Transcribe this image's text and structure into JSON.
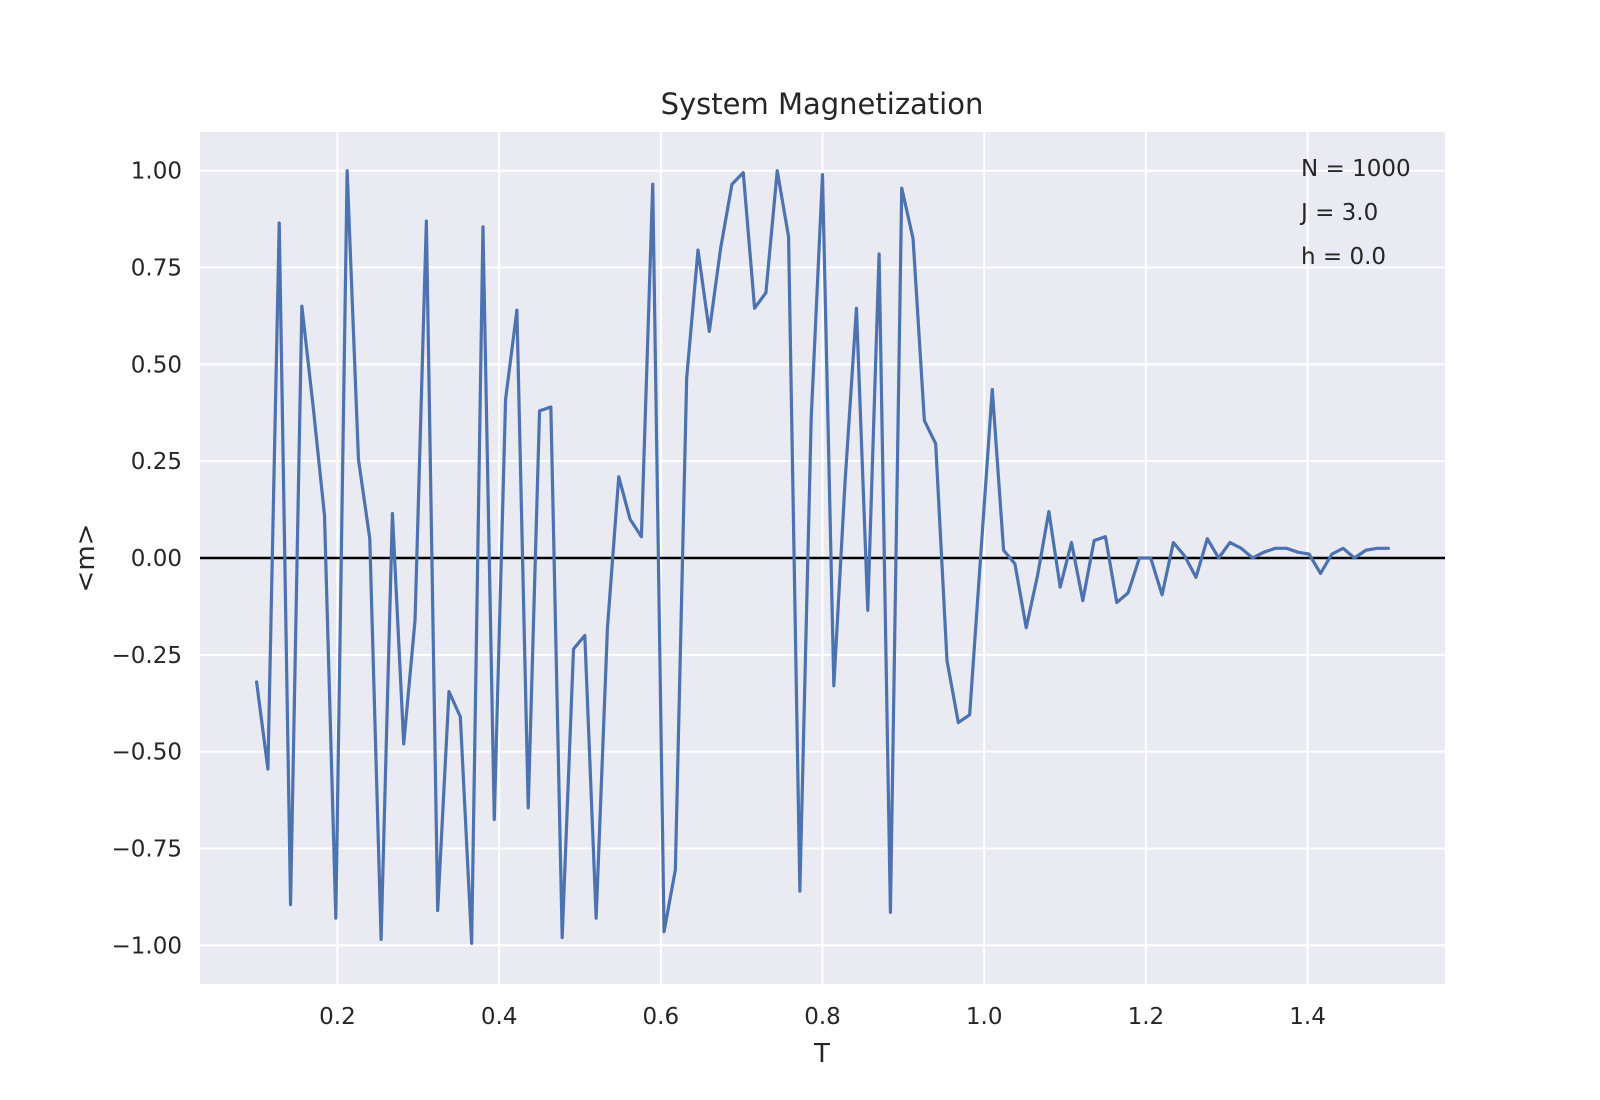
{
  "chart_data": {
    "type": "line",
    "title": "System Magnetization",
    "xlabel": "T",
    "ylabel": "<m>",
    "xlim": [
      0.03,
      1.57
    ],
    "ylim": [
      -1.1,
      1.1
    ],
    "xticks": [
      0.2,
      0.4,
      0.6,
      0.8,
      1.0,
      1.2,
      1.4
    ],
    "xtick_labels": [
      "0.2",
      "0.4",
      "0.6",
      "0.8",
      "1.0",
      "1.2",
      "1.4"
    ],
    "yticks": [
      1.0,
      0.75,
      0.5,
      0.25,
      0.0,
      -0.25,
      -0.5,
      -0.75,
      -1.0
    ],
    "ytick_labels": [
      "1.00",
      "0.75",
      "0.50",
      "0.25",
      "0.00",
      "−0.25",
      "−0.50",
      "−0.75",
      "−1.00"
    ],
    "grid": true,
    "reference_line": {
      "y": 0.0,
      "color": "#000000"
    },
    "annotations": [
      "N = 1000",
      "J = 3.0",
      "h = 0.0"
    ],
    "series": [
      {
        "color": "#4c72b0",
        "x": [
          0.1,
          0.114,
          0.128,
          0.142,
          0.156,
          0.17,
          0.184,
          0.198,
          0.212,
          0.226,
          0.24,
          0.254,
          0.268,
          0.282,
          0.296,
          0.31,
          0.324,
          0.338,
          0.352,
          0.366,
          0.38,
          0.394,
          0.408,
          0.422,
          0.436,
          0.45,
          0.464,
          0.478,
          0.492,
          0.506,
          0.52,
          0.534,
          0.548,
          0.562,
          0.576,
          0.59,
          0.604,
          0.618,
          0.632,
          0.646,
          0.66,
          0.674,
          0.688,
          0.702,
          0.716,
          0.73,
          0.744,
          0.758,
          0.772,
          0.786,
          0.8,
          0.814,
          0.828,
          0.842,
          0.856,
          0.87,
          0.884,
          0.898,
          0.912,
          0.926,
          0.94,
          0.954,
          0.968,
          0.982,
          0.996,
          1.01,
          1.024,
          1.038,
          1.052,
          1.066,
          1.08,
          1.094,
          1.108,
          1.122,
          1.136,
          1.15,
          1.164,
          1.178,
          1.192,
          1.206,
          1.22,
          1.234,
          1.248,
          1.262,
          1.276,
          1.29,
          1.304,
          1.318,
          1.332,
          1.346,
          1.36,
          1.374,
          1.388,
          1.402,
          1.416,
          1.43,
          1.444,
          1.458,
          1.472,
          1.486,
          1.5
        ],
        "y": [
          -0.32,
          -0.545,
          0.865,
          -0.895,
          0.65,
          0.39,
          0.11,
          -0.93,
          1.0,
          0.255,
          0.05,
          -0.985,
          0.115,
          -0.48,
          -0.16,
          0.87,
          -0.91,
          -0.345,
          -0.41,
          -0.995,
          0.855,
          -0.675,
          0.41,
          0.64,
          -0.645,
          0.38,
          0.39,
          -0.98,
          -0.235,
          -0.2,
          -0.93,
          -0.18,
          0.21,
          0.1,
          0.055,
          0.965,
          -0.965,
          -0.805,
          0.465,
          0.795,
          0.585,
          0.8,
          0.965,
          0.995,
          0.645,
          0.685,
          1.0,
          0.83,
          -0.86,
          0.36,
          0.99,
          -0.33,
          0.2,
          0.645,
          -0.135,
          0.785,
          -0.915,
          0.955,
          0.825,
          0.355,
          0.295,
          -0.265,
          -0.425,
          -0.405,
          0.015,
          0.435,
          0.02,
          -0.015,
          -0.18,
          -0.045,
          0.12,
          -0.075,
          0.04,
          -0.11,
          0.045,
          0.055,
          -0.115,
          -0.09,
          0.0,
          0.0,
          -0.095,
          0.04,
          0.005,
          -0.05,
          0.05,
          0.0,
          0.04,
          0.025,
          0.0,
          0.015,
          0.025,
          0.025,
          0.015,
          0.01,
          -0.04,
          0.01,
          0.025,
          0.0,
          0.02,
          0.025,
          0.025
        ]
      }
    ]
  }
}
